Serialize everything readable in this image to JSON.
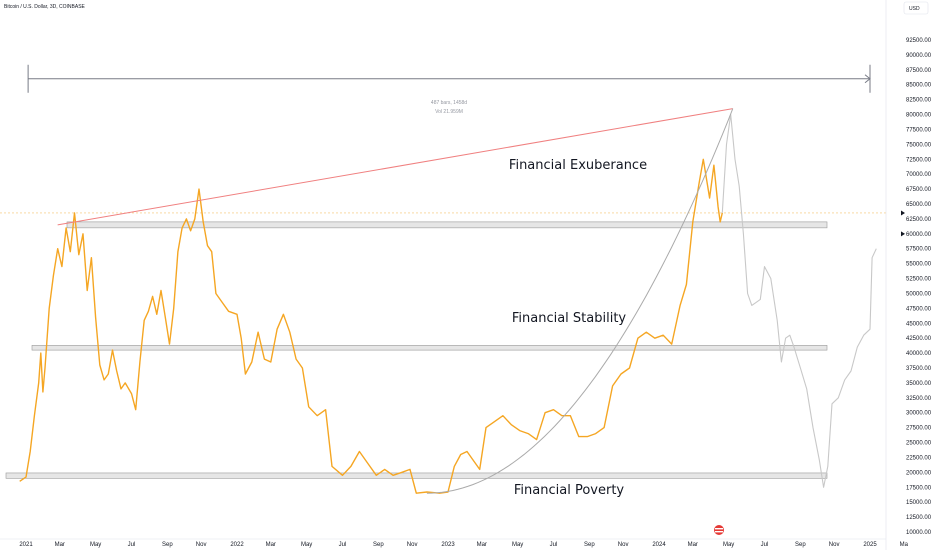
{
  "header": {
    "symbol": "Bitcoin / U.S. Dollar, 3D, COINBASE",
    "currency": "USD"
  },
  "measure": {
    "line1": "487 bars, 1458d",
    "line2": "Vol 21.959M"
  },
  "zones": [
    {
      "name": "Financial Exuberance",
      "band_low": 61000,
      "band_high": 62000
    },
    {
      "name": "Financial Stability",
      "band_low": 40500,
      "band_high": 41300
    },
    {
      "name": "Financial Poverty",
      "band_low": 19000,
      "band_high": 19900
    }
  ],
  "chart_data": {
    "type": "line",
    "xlabel": "",
    "ylabel": "",
    "ylim": [
      10000,
      95000
    ],
    "y_ticks": [
      10000,
      12500,
      15000,
      17500,
      20000,
      22500,
      25000,
      27500,
      30000,
      32500,
      35000,
      37500,
      40000,
      42500,
      45000,
      47500,
      50000,
      52500,
      55000,
      57500,
      60000,
      62500,
      65000,
      67500,
      70000,
      72500,
      75000,
      77500,
      80000,
      82500,
      85000,
      87500,
      90000,
      92500
    ],
    "y_tick_labels": [
      "10000.00",
      "12500.00",
      "15000.00",
      "17500.00",
      "20000.00",
      "22500.00",
      "25000.00",
      "27500.00",
      "30000.00",
      "32500.00",
      "35000.00",
      "37500.00",
      "40000.00",
      "42500.00",
      "45000.00",
      "47500.00",
      "50000.00",
      "52500.00",
      "55000.00",
      "57500.00",
      "60000.00",
      "62500.00",
      "65000.00",
      "67500.00",
      "70000.00",
      "72500.00",
      "75000.00",
      "77500.00",
      "80000.00",
      "82500.00",
      "85000.00",
      "87500.00",
      "90000.00",
      "92500.00"
    ],
    "x_ticks": [
      {
        "label": "2021",
        "t": 2021.0
      },
      {
        "label": "Mar",
        "t": 2021.16
      },
      {
        "label": "May",
        "t": 2021.33
      },
      {
        "label": "Jul",
        "t": 2021.5
      },
      {
        "label": "Sep",
        "t": 2021.67
      },
      {
        "label": "Nov",
        "t": 2021.83
      },
      {
        "label": "2022",
        "t": 2022.0
      },
      {
        "label": "Mar",
        "t": 2022.16
      },
      {
        "label": "May",
        "t": 2022.33
      },
      {
        "label": "Jul",
        "t": 2022.5
      },
      {
        "label": "Sep",
        "t": 2022.67
      },
      {
        "label": "Nov",
        "t": 2022.83
      },
      {
        "label": "2023",
        "t": 2023.0
      },
      {
        "label": "Mar",
        "t": 2023.16
      },
      {
        "label": "May",
        "t": 2023.33
      },
      {
        "label": "Jul",
        "t": 2023.5
      },
      {
        "label": "Sep",
        "t": 2023.67
      },
      {
        "label": "Nov",
        "t": 2023.83
      },
      {
        "label": "2024",
        "t": 2024.0
      },
      {
        "label": "Mar",
        "t": 2024.16
      },
      {
        "label": "May",
        "t": 2024.33
      },
      {
        "label": "Jul",
        "t": 2024.5
      },
      {
        "label": "Sep",
        "t": 2024.67
      },
      {
        "label": "Nov",
        "t": 2024.83
      },
      {
        "label": "2025",
        "t": 2025.0
      },
      {
        "label": "Ma",
        "t": 2025.16
      }
    ],
    "series": [
      {
        "color": "#f5a623",
        "points": [
          [
            2020.97,
            18500
          ],
          [
            2021.0,
            19200
          ],
          [
            2021.02,
            23500
          ],
          [
            2021.04,
            29500
          ],
          [
            2021.06,
            35000
          ],
          [
            2021.07,
            40000
          ],
          [
            2021.08,
            33500
          ],
          [
            2021.09,
            37500
          ],
          [
            2021.11,
            47500
          ],
          [
            2021.13,
            53000
          ],
          [
            2021.15,
            57500
          ],
          [
            2021.17,
            54500
          ],
          [
            2021.19,
            61000
          ],
          [
            2021.21,
            57000
          ],
          [
            2021.23,
            63500
          ],
          [
            2021.25,
            56500
          ],
          [
            2021.27,
            60000
          ],
          [
            2021.29,
            50500
          ],
          [
            2021.31,
            56000
          ],
          [
            2021.33,
            46000
          ],
          [
            2021.35,
            38000
          ],
          [
            2021.37,
            35500
          ],
          [
            2021.39,
            36500
          ],
          [
            2021.41,
            40500
          ],
          [
            2021.43,
            37000
          ],
          [
            2021.45,
            34000
          ],
          [
            2021.47,
            35000
          ],
          [
            2021.5,
            33200
          ],
          [
            2021.52,
            30500
          ],
          [
            2021.54,
            38500
          ],
          [
            2021.56,
            45500
          ],
          [
            2021.58,
            47000
          ],
          [
            2021.6,
            49500
          ],
          [
            2021.62,
            46500
          ],
          [
            2021.64,
            50500
          ],
          [
            2021.66,
            46000
          ],
          [
            2021.68,
            41500
          ],
          [
            2021.7,
            47500
          ],
          [
            2021.72,
            57000
          ],
          [
            2021.74,
            61000
          ],
          [
            2021.76,
            62500
          ],
          [
            2021.78,
            60500
          ],
          [
            2021.8,
            62500
          ],
          [
            2021.82,
            67500
          ],
          [
            2021.84,
            62000
          ],
          [
            2021.86,
            58000
          ],
          [
            2021.88,
            57000
          ],
          [
            2021.9,
            50000
          ],
          [
            2021.93,
            48500
          ],
          [
            2021.96,
            47000
          ],
          [
            2022.0,
            46500
          ],
          [
            2022.02,
            42500
          ],
          [
            2022.04,
            36500
          ],
          [
            2022.07,
            38500
          ],
          [
            2022.1,
            43500
          ],
          [
            2022.13,
            39000
          ],
          [
            2022.16,
            38500
          ],
          [
            2022.19,
            44000
          ],
          [
            2022.22,
            46500
          ],
          [
            2022.25,
            43500
          ],
          [
            2022.28,
            39000
          ],
          [
            2022.31,
            37500
          ],
          [
            2022.34,
            31000
          ],
          [
            2022.38,
            29500
          ],
          [
            2022.42,
            30500
          ],
          [
            2022.45,
            21000
          ],
          [
            2022.5,
            19500
          ],
          [
            2022.54,
            21000
          ],
          [
            2022.58,
            23500
          ],
          [
            2022.62,
            21500
          ],
          [
            2022.66,
            19500
          ],
          [
            2022.7,
            20500
          ],
          [
            2022.74,
            19500
          ],
          [
            2022.78,
            20000
          ],
          [
            2022.82,
            20500
          ],
          [
            2022.85,
            16500
          ],
          [
            2022.9,
            16700
          ],
          [
            2022.96,
            16500
          ],
          [
            2023.0,
            16700
          ],
          [
            2023.03,
            21000
          ],
          [
            2023.06,
            23000
          ],
          [
            2023.09,
            23500
          ],
          [
            2023.12,
            22000
          ],
          [
            2023.15,
            20500
          ],
          [
            2023.18,
            27500
          ],
          [
            2023.22,
            28500
          ],
          [
            2023.26,
            29500
          ],
          [
            2023.3,
            28000
          ],
          [
            2023.34,
            27000
          ],
          [
            2023.38,
            26500
          ],
          [
            2023.42,
            25500
          ],
          [
            2023.46,
            30000
          ],
          [
            2023.5,
            30500
          ],
          [
            2023.54,
            29500
          ],
          [
            2023.58,
            29500
          ],
          [
            2023.62,
            26000
          ],
          [
            2023.66,
            26000
          ],
          [
            2023.7,
            26500
          ],
          [
            2023.74,
            27500
          ],
          [
            2023.78,
            34500
          ],
          [
            2023.82,
            36500
          ],
          [
            2023.86,
            37500
          ],
          [
            2023.9,
            42500
          ],
          [
            2023.94,
            43500
          ],
          [
            2023.98,
            42500
          ],
          [
            2024.02,
            43000
          ],
          [
            2024.06,
            41500
          ],
          [
            2024.1,
            48000
          ],
          [
            2024.13,
            51500
          ],
          [
            2024.16,
            62000
          ],
          [
            2024.19,
            68500
          ],
          [
            2024.21,
            72500
          ],
          [
            2024.24,
            66000
          ],
          [
            2024.26,
            71500
          ],
          [
            2024.28,
            64500
          ],
          [
            2024.29,
            62000
          ],
          [
            2024.3,
            63500
          ]
        ]
      },
      {
        "color": "#c8c8c8",
        "points": [
          [
            2024.3,
            63500
          ],
          [
            2024.32,
            75000
          ],
          [
            2024.34,
            80000
          ],
          [
            2024.36,
            72500
          ],
          [
            2024.38,
            68000
          ],
          [
            2024.4,
            60000
          ],
          [
            2024.42,
            50000
          ],
          [
            2024.44,
            48000
          ],
          [
            2024.46,
            48500
          ],
          [
            2024.48,
            49000
          ],
          [
            2024.5,
            54500
          ],
          [
            2024.53,
            52500
          ],
          [
            2024.56,
            45500
          ],
          [
            2024.58,
            38500
          ],
          [
            2024.6,
            42500
          ],
          [
            2024.62,
            43000
          ],
          [
            2024.64,
            41000
          ],
          [
            2024.67,
            37500
          ],
          [
            2024.7,
            34000
          ],
          [
            2024.73,
            27500
          ],
          [
            2024.76,
            22000
          ],
          [
            2024.78,
            17500
          ],
          [
            2024.8,
            21000
          ],
          [
            2024.82,
            31500
          ],
          [
            2024.85,
            32500
          ],
          [
            2024.88,
            35500
          ],
          [
            2024.91,
            37000
          ],
          [
            2024.94,
            41000
          ],
          [
            2024.97,
            43000
          ],
          [
            2025.0,
            44000
          ],
          [
            2025.01,
            56000
          ],
          [
            2025.03,
            57500
          ]
        ]
      }
    ],
    "current_price": 63500,
    "resistance_line": {
      "color": "#f08080",
      "from": [
        2021.15,
        61500
      ],
      "to": [
        2024.35,
        81000
      ]
    },
    "parabola": {
      "color": "#aaaaaa",
      "vertex": [
        2022.9,
        16500
      ],
      "to": [
        2024.35,
        81000
      ]
    },
    "measure_span": {
      "from": 2021.01,
      "to": 2025.0,
      "price": 86000
    }
  }
}
